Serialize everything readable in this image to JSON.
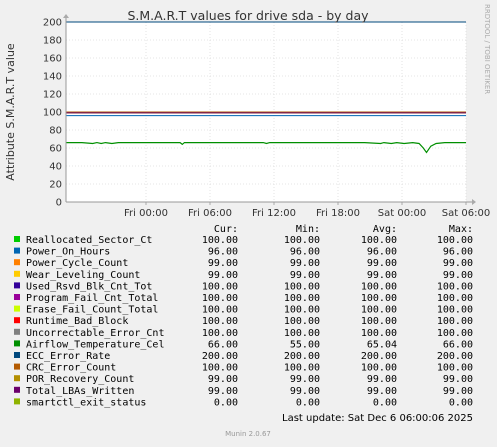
{
  "chart_data": {
    "type": "line",
    "title": "S.M.A.R.T values for drive sda - by day",
    "ylabel": "Attribute S.M.A.R.T value",
    "xlabel": "",
    "ylim": [
      0,
      200
    ],
    "yticks": [
      0,
      20,
      40,
      60,
      80,
      100,
      120,
      140,
      160,
      180,
      200
    ],
    "xticks": [
      "Fri 00:00",
      "Fri 06:00",
      "Fri 12:00",
      "Fri 18:00",
      "Sat 00:00",
      "Sat 06:00"
    ],
    "xrange_hours": [
      -7.5,
      30.0
    ],
    "grid": true,
    "side_text": "RRDTOOL / TOBI OETIKER",
    "footer_update": "Last update: Sat Dec  6 06:00:06 2025",
    "footer_version": "Munin 2.0.67",
    "legend_headers": [
      "Cur:",
      "Min:",
      "Avg:",
      "Max:"
    ],
    "series": [
      {
        "name": "Reallocated_Sector_Ct",
        "color": "#00cc00",
        "cur": "100.00",
        "min": "100.00",
        "avg": "100.00",
        "max": "100.00",
        "value": 100
      },
      {
        "name": "Power_On_Hours",
        "color": "#0066b3",
        "cur": "96.00",
        "min": "96.00",
        "avg": "96.00",
        "max": "96.00",
        "value": 96
      },
      {
        "name": "Power_Cycle_Count",
        "color": "#ff8000",
        "cur": "99.00",
        "min": "99.00",
        "avg": "99.00",
        "max": "99.00",
        "value": 99
      },
      {
        "name": "Wear_Leveling_Count",
        "color": "#ffcc00",
        "cur": "99.00",
        "min": "99.00",
        "avg": "99.00",
        "max": "99.00",
        "value": 99
      },
      {
        "name": "Used_Rsvd_Blk_Cnt_Tot",
        "color": "#330099",
        "cur": "100.00",
        "min": "100.00",
        "avg": "100.00",
        "max": "100.00",
        "value": 100
      },
      {
        "name": "Program_Fail_Cnt_Total",
        "color": "#990099",
        "cur": "100.00",
        "min": "100.00",
        "avg": "100.00",
        "max": "100.00",
        "value": 100
      },
      {
        "name": "Erase_Fail_Count_Total",
        "color": "#ccff00",
        "cur": "100.00",
        "min": "100.00",
        "avg": "100.00",
        "max": "100.00",
        "value": 100
      },
      {
        "name": "Runtime_Bad_Block",
        "color": "#ff0000",
        "cur": "100.00",
        "min": "100.00",
        "avg": "100.00",
        "max": "100.00",
        "value": 100
      },
      {
        "name": "Uncorrectable_Error_Cnt",
        "color": "#808080",
        "cur": "100.00",
        "min": "100.00",
        "avg": "100.00",
        "max": "100.00",
        "value": 100
      },
      {
        "name": "Airflow_Temperature_Cel",
        "color": "#008f00",
        "cur": "66.00",
        "min": "55.00",
        "avg": "65.04",
        "max": "66.00",
        "value": 66
      },
      {
        "name": "ECC_Error_Rate",
        "color": "#00487d",
        "cur": "200.00",
        "min": "200.00",
        "avg": "200.00",
        "max": "200.00",
        "value": 200
      },
      {
        "name": "CRC_Error_Count",
        "color": "#b35a00",
        "cur": "100.00",
        "min": "100.00",
        "avg": "100.00",
        "max": "100.00",
        "value": 100
      },
      {
        "name": "POR_Recovery_Count",
        "color": "#b38f00",
        "cur": "99.00",
        "min": "99.00",
        "avg": "99.00",
        "max": "99.00",
        "value": 99
      },
      {
        "name": "Total_LBAs_Written",
        "color": "#6b006b",
        "cur": "99.00",
        "min": "99.00",
        "avg": "99.00",
        "max": "99.00",
        "value": 99
      },
      {
        "name": "smartctl_exit_status",
        "color": "#8fb300",
        "cur": "0.00",
        "min": "0.00",
        "avg": "0.00",
        "max": "0.00",
        "value": 0
      }
    ],
    "temperature_trace": [
      [
        -7.5,
        66
      ],
      [
        -6.0,
        66
      ],
      [
        -5.0,
        65
      ],
      [
        -4.6,
        66
      ],
      [
        -4.2,
        65
      ],
      [
        -3.8,
        66
      ],
      [
        -3.2,
        65
      ],
      [
        -2.6,
        66
      ],
      [
        -1.5,
        66
      ],
      [
        -0.8,
        66
      ],
      [
        0.0,
        66
      ],
      [
        1.2,
        66
      ],
      [
        2.5,
        66
      ],
      [
        3.2,
        66
      ],
      [
        3.4,
        64
      ],
      [
        3.6,
        66
      ],
      [
        4.5,
        66
      ],
      [
        6.0,
        66
      ],
      [
        8.0,
        66
      ],
      [
        10.0,
        66
      ],
      [
        11.0,
        66
      ],
      [
        11.3,
        65
      ],
      [
        11.6,
        66
      ],
      [
        14.0,
        66
      ],
      [
        17.0,
        66
      ],
      [
        19.0,
        66
      ],
      [
        20.5,
        66
      ],
      [
        22.0,
        65
      ],
      [
        22.3,
        66
      ],
      [
        23.0,
        65
      ],
      [
        23.5,
        66
      ],
      [
        24.2,
        65
      ],
      [
        25.0,
        66
      ],
      [
        25.6,
        65
      ],
      [
        26.0,
        60
      ],
      [
        26.3,
        55
      ],
      [
        26.7,
        62
      ],
      [
        27.2,
        65
      ],
      [
        28.0,
        66
      ],
      [
        29.2,
        66
      ],
      [
        30.0,
        66
      ]
    ]
  }
}
